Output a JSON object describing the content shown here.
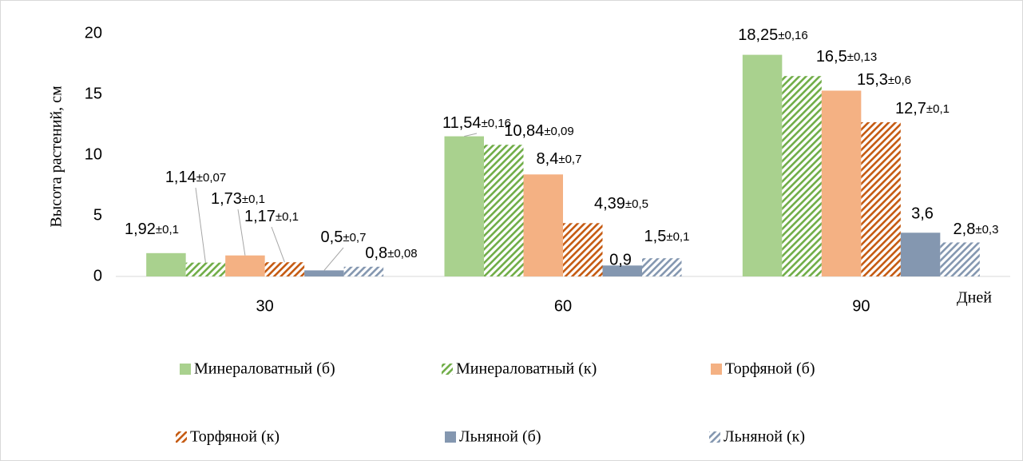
{
  "chart_data": {
    "type": "bar",
    "y_label": "Высота растений, см",
    "x_label": "Дней",
    "categories": [
      "30",
      "60",
      "90"
    ],
    "ylim": [
      0,
      20
    ],
    "yticks": [
      0,
      5,
      10,
      15,
      20
    ],
    "grid": false,
    "legend": "bottom",
    "series": [
      {
        "name": "Минераловатный (б)",
        "color": "#a9d18e",
        "hatch": false,
        "values": [
          1.92,
          11.54,
          18.25
        ],
        "value_labels": [
          "1,92±0,1",
          "11,54±0,16",
          "18,25±0,16"
        ]
      },
      {
        "name": "Минераловатный (к)",
        "color": "#70ad47",
        "hatch": true,
        "values": [
          1.14,
          10.84,
          16.5
        ],
        "value_labels": [
          "1,14±0,07",
          "10,84±0,09",
          "16,5±0,13"
        ]
      },
      {
        "name": "Торфяной (б)",
        "color": "#f4b183",
        "hatch": false,
        "values": [
          1.73,
          8.4,
          15.3
        ],
        "value_labels": [
          "1,73±0,1",
          "8,4±0,7",
          "15,3±0,6"
        ]
      },
      {
        "name": "Торфяной (к)",
        "color": "#c55a11",
        "hatch": true,
        "values": [
          1.17,
          4.39,
          12.7
        ],
        "value_labels": [
          "1,17±0,1",
          "4,39±0,5",
          "12,7±0,1"
        ]
      },
      {
        "name": "Льняной (б)",
        "color": "#8497b0",
        "hatch": false,
        "values": [
          0.5,
          0.9,
          3.6
        ],
        "value_labels": [
          "0,5±0,7",
          "0,9",
          "3,6"
        ]
      },
      {
        "name": "Льняной (к)",
        "color": "#8497b0",
        "hatch": true,
        "values": [
          0.8,
          1.5,
          2.8
        ],
        "value_labels": [
          "0,8±0,08",
          "1,5±0,1",
          "2,8±0,3"
        ]
      }
    ]
  }
}
